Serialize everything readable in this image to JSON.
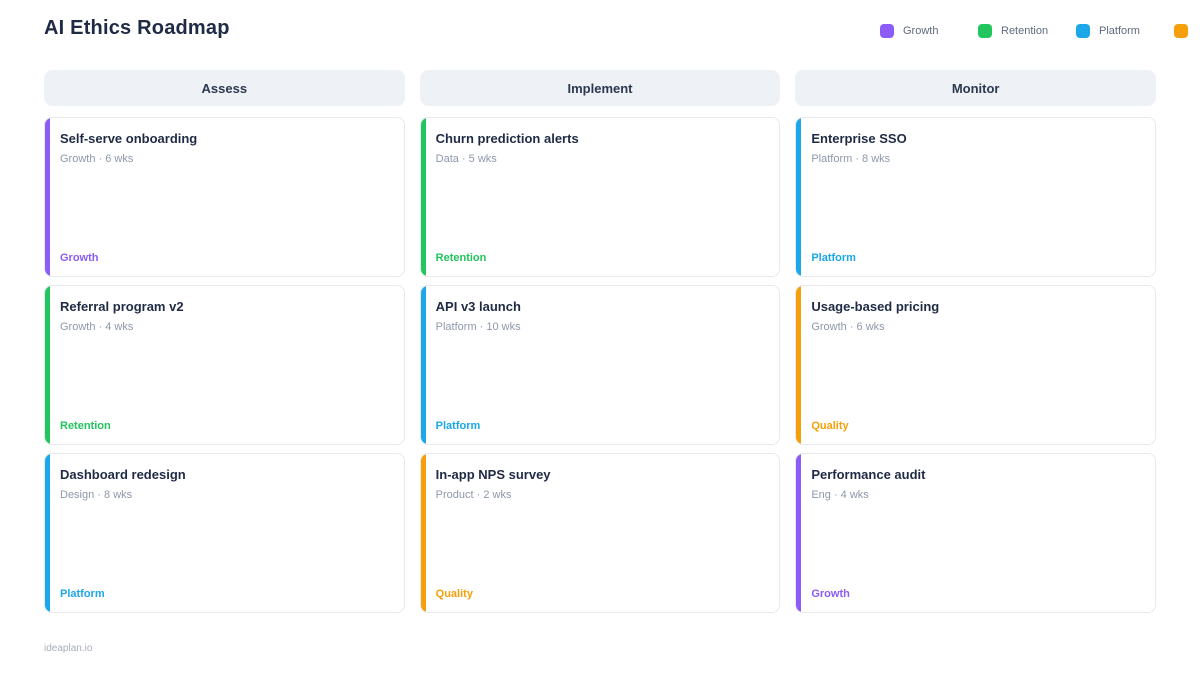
{
  "app": {
    "title": "AI Ethics Roadmap",
    "footer": "ideaplan.io"
  },
  "legend": {
    "items": [
      {
        "label": "Growth",
        "color": "#8b5cf6"
      },
      {
        "label": "Retention",
        "color": "#22c55e"
      },
      {
        "label": "Platform",
        "color": "#1ba7e8"
      },
      {
        "label": "",
        "color": "#f5a00b"
      }
    ]
  },
  "tag_colors": {
    "growth": "#8b5cf6",
    "retention": "#22c55e",
    "platform": "#1ba7e8",
    "quality": "#f5a00b"
  },
  "board": {
    "columns": [
      {
        "title": "Assess",
        "cards": [
          {
            "title": "Self-serve onboarding",
            "meta": "Growth · 6 wks",
            "tag": "Growth",
            "color": "#8b5cf6"
          },
          {
            "title": "Referral program v2",
            "meta": "Growth · 4 wks",
            "tag": "Retention",
            "color": "#22c55e"
          },
          {
            "title": "Dashboard redesign",
            "meta": "Design · 8 wks",
            "tag": "Platform",
            "color": "#1ba7e8"
          }
        ]
      },
      {
        "title": "Implement",
        "cards": [
          {
            "title": "Churn prediction alerts",
            "meta": "Data · 5 wks",
            "tag": "Retention",
            "color": "#22c55e"
          },
          {
            "title": "API v3 launch",
            "meta": "Platform · 10 wks",
            "tag": "Platform",
            "color": "#1ba7e8"
          },
          {
            "title": "In-app NPS survey",
            "meta": "Product · 2 wks",
            "tag": "Quality",
            "color": "#f5a00b"
          }
        ]
      },
      {
        "title": "Monitor",
        "cards": [
          {
            "title": "Enterprise SSO",
            "meta": "Platform · 8 wks",
            "tag": "Platform",
            "color": "#1ba7e8"
          },
          {
            "title": "Usage-based pricing",
            "meta": "Growth · 6 wks",
            "tag": "Quality",
            "color": "#f5a00b"
          },
          {
            "title": "Performance audit",
            "meta": "Eng · 4 wks",
            "tag": "Growth",
            "color": "#8b5cf6"
          }
        ]
      }
    ]
  }
}
